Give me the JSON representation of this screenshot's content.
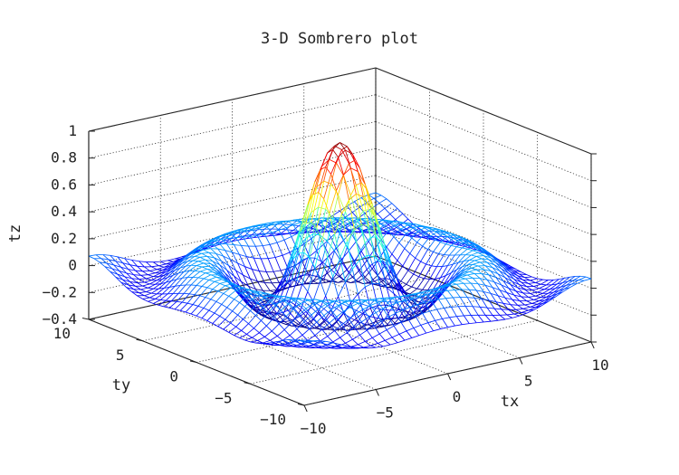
{
  "chart_data": {
    "type": "surface",
    "title": "3-D Sombrero plot",
    "function": "sin(sqrt(tx^2+ty^2)) / sqrt(tx^2+ty^2)",
    "xlabel": "tx",
    "ylabel": "ty",
    "zlabel": "tz",
    "xlim": [
      -10,
      10
    ],
    "ylim": [
      -10,
      10
    ],
    "zlim": [
      -0.4,
      1
    ],
    "x_ticks": [
      "−10",
      "−5",
      "0",
      "5",
      "10"
    ],
    "y_ticks": [
      "−10",
      "−5",
      "0",
      "5",
      "10"
    ],
    "z_ticks": [
      "−0.4",
      "−0.2",
      "0",
      "0.2",
      "0.4",
      "0.6",
      "0.8",
      "1"
    ],
    "grid_points": 41,
    "colormap": "jet",
    "grid": true,
    "peak": {
      "tx": 0,
      "ty": 0,
      "tz": 1
    },
    "colors": {
      "box": "#222222",
      "jet_low": "#0000ff",
      "jet_high": "#ff0000"
    }
  }
}
